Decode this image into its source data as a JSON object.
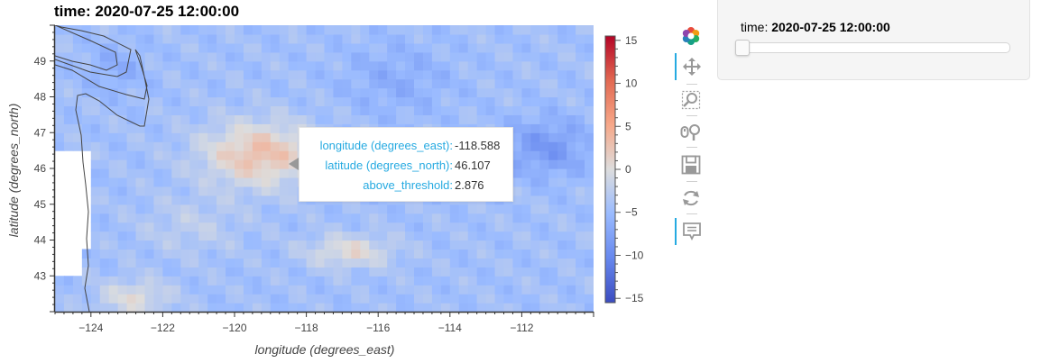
{
  "title": "time: 2020-07-25 12:00:00",
  "chart_data": {
    "type": "heatmap",
    "xlabel": "longitude (degrees_east)",
    "ylabel": "latitude (degrees_north)",
    "xlim": [
      -125,
      -110
    ],
    "ylim": [
      42,
      50
    ],
    "x_ticks": [
      -124,
      -122,
      -120,
      -118,
      -116,
      -114,
      -112
    ],
    "y_ticks": [
      43,
      44,
      45,
      46,
      47,
      48,
      49
    ],
    "colorbar": {
      "min": -15.5,
      "max": 15.5,
      "ticks": [
        -15,
        -10,
        -5,
        0,
        5,
        10,
        15
      ],
      "colormap": "coolwarm",
      "colors": [
        "#3b4cc0",
        "#6788ee",
        "#9abbff",
        "#dddddd",
        "#f7a889",
        "#e26952",
        "#b40426"
      ]
    },
    "variable": "above_threshold",
    "grid": false
  },
  "tooltip": {
    "rows": [
      {
        "label": "longitude (degrees_east):",
        "value": "-118.588"
      },
      {
        "label": "latitude (degrees_north):",
        "value": "46.107"
      },
      {
        "label": "above_threshold:",
        "value": "2.876"
      }
    ]
  },
  "toolbar": {
    "tools": [
      {
        "icon": "bokeh-logo-icon",
        "active": false
      },
      {
        "icon": "pan-icon",
        "active": true
      },
      {
        "icon": "box-zoom-icon",
        "active": false
      },
      {
        "icon": "wheel-zoom-icon",
        "active": false
      },
      {
        "icon": "save-icon",
        "active": false
      },
      {
        "icon": "reset-icon",
        "active": false
      },
      {
        "icon": "hover-icon",
        "active": true
      }
    ],
    "accent_color": "#26aae1"
  },
  "widget": {
    "label": "time: ",
    "value": "2020-07-25 12:00:00",
    "slider_position": 0
  }
}
